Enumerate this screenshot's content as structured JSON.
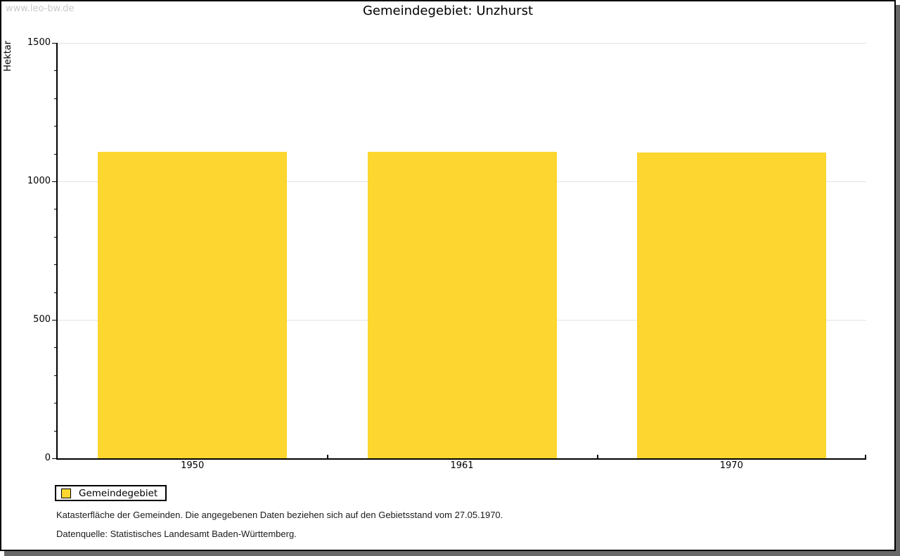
{
  "watermark": "www.leo-bw.de",
  "chart_data": {
    "type": "bar",
    "title": "Gemeindegebiet: Unzhurst",
    "categories": [
      "1950",
      "1961",
      "1970"
    ],
    "series": [
      {
        "name": "Gemeindegebiet",
        "values": [
          1106,
          1106,
          1103
        ],
        "color": "#FDD62F"
      }
    ],
    "xlabel": "",
    "ylabel": "Hektar",
    "ylim": [
      0,
      1500
    ],
    "ytick_major": 500,
    "ytick_minor": 100,
    "ytick_labels": [
      "0",
      "500",
      "1000",
      "1500"
    ],
    "grid": true,
    "gridline_color": "#e3e3e3",
    "legend_position": "bottom-left"
  },
  "legend": {
    "items": [
      {
        "label": "Gemeindegebiet",
        "color": "#FDD62F"
      }
    ]
  },
  "footnotes": [
    "Katasterfläche der Gemeinden. Die angegebenen Daten beziehen sich auf den Gebietsstand vom 27.05.1970.",
    "Datenquelle: Statistisches Landesamt Baden-Württemberg."
  ]
}
